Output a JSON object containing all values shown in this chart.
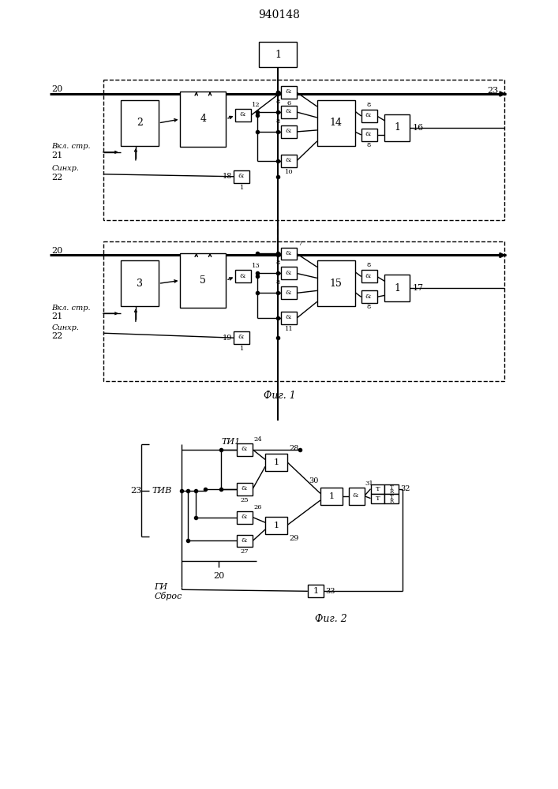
{
  "title": "940148",
  "fig1_label": "Фиг. 1",
  "fig2_label": "Фиг. 2",
  "background": "#ffffff"
}
